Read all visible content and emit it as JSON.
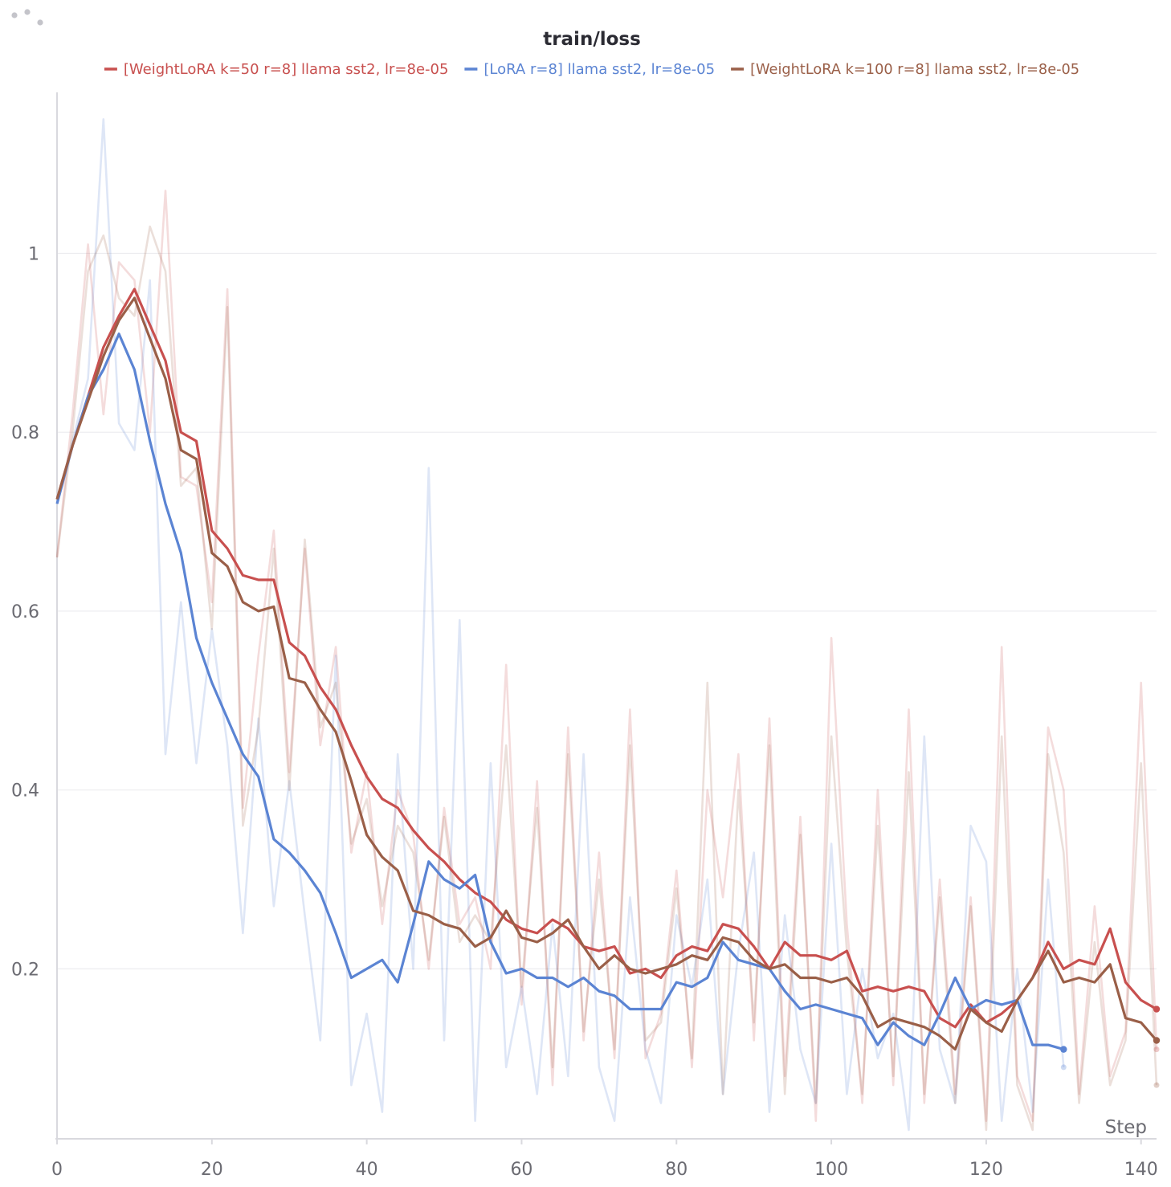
{
  "chart_data": {
    "type": "line",
    "title": "train/loss",
    "xlabel": "Step",
    "ylabel": "",
    "xlim": [
      0,
      142
    ],
    "ylim": [
      0.01,
      1.18
    ],
    "x_ticks": [
      0,
      20,
      40,
      60,
      80,
      100,
      120,
      140
    ],
    "y_ticks": [
      0.2,
      0.4,
      0.6,
      0.8,
      1
    ],
    "y_tick_labels": [
      "0.2",
      "0.4",
      "0.6",
      "0.8",
      "1"
    ],
    "grid": true,
    "legend_position": "top-center",
    "series": [
      {
        "name": "[WeightLoRA k=50 r=8] llama sst2, lr=8e-05",
        "color": "#c8504f",
        "x": [
          0,
          2,
          4,
          6,
          8,
          10,
          12,
          14,
          16,
          18,
          20,
          22,
          24,
          26,
          28,
          30,
          32,
          34,
          36,
          38,
          40,
          42,
          44,
          46,
          48,
          50,
          52,
          54,
          56,
          58,
          60,
          62,
          64,
          66,
          68,
          70,
          72,
          74,
          76,
          78,
          80,
          82,
          84,
          86,
          88,
          90,
          92,
          94,
          96,
          98,
          100,
          102,
          104,
          106,
          108,
          110,
          112,
          114,
          116,
          118,
          120,
          122,
          124,
          126,
          128,
          130,
          132,
          134,
          136,
          138,
          140,
          142
        ],
        "values": [
          0.725,
          0.785,
          0.84,
          0.895,
          0.93,
          0.96,
          0.92,
          0.88,
          0.8,
          0.79,
          0.69,
          0.67,
          0.64,
          0.635,
          0.635,
          0.565,
          0.55,
          0.515,
          0.49,
          0.45,
          0.415,
          0.39,
          0.38,
          0.355,
          0.335,
          0.32,
          0.3,
          0.285,
          0.275,
          0.255,
          0.245,
          0.24,
          0.255,
          0.245,
          0.225,
          0.22,
          0.225,
          0.195,
          0.2,
          0.19,
          0.215,
          0.225,
          0.22,
          0.25,
          0.245,
          0.225,
          0.2,
          0.23,
          0.215,
          0.215,
          0.21,
          0.22,
          0.175,
          0.18,
          0.175,
          0.18,
          0.175,
          0.145,
          0.135,
          0.16,
          0.14,
          0.15,
          0.165,
          0.19,
          0.23,
          0.2,
          0.21,
          0.205,
          0.245,
          0.185,
          0.165,
          0.155
        ]
      },
      {
        "name": "[LoRA r=8] llama sst2, lr=8e-05",
        "color": "#5b84d3",
        "x": [
          0,
          2,
          4,
          6,
          8,
          10,
          12,
          14,
          16,
          18,
          20,
          22,
          24,
          26,
          28,
          30,
          32,
          34,
          36,
          38,
          40,
          42,
          44,
          46,
          48,
          50,
          52,
          54,
          56,
          58,
          60,
          62,
          64,
          66,
          68,
          70,
          72,
          74,
          76,
          78,
          80,
          82,
          84,
          86,
          88,
          90,
          92,
          94,
          96,
          98,
          100,
          102,
          104,
          106,
          108,
          110,
          112,
          114,
          116,
          118,
          120,
          122,
          124,
          126,
          128,
          130
        ],
        "values": [
          0.72,
          0.785,
          0.84,
          0.87,
          0.91,
          0.87,
          0.79,
          0.72,
          0.665,
          0.57,
          0.52,
          0.48,
          0.44,
          0.415,
          0.345,
          0.33,
          0.31,
          0.285,
          0.24,
          0.19,
          0.2,
          0.21,
          0.185,
          0.25,
          0.32,
          0.3,
          0.29,
          0.305,
          0.23,
          0.195,
          0.2,
          0.19,
          0.19,
          0.18,
          0.19,
          0.175,
          0.17,
          0.155,
          0.155,
          0.155,
          0.185,
          0.18,
          0.19,
          0.23,
          0.21,
          0.205,
          0.2,
          0.175,
          0.155,
          0.16,
          0.155,
          0.15,
          0.145,
          0.115,
          0.14,
          0.125,
          0.115,
          0.15,
          0.19,
          0.155,
          0.165,
          0.16,
          0.165,
          0.115,
          0.115,
          0.11
        ]
      },
      {
        "name": "[WeightLoRA k=100 r=8] llama sst2, lr=8e-05",
        "color": "#9a5f48",
        "x": [
          0,
          2,
          4,
          6,
          8,
          10,
          12,
          14,
          16,
          18,
          20,
          22,
          24,
          26,
          28,
          30,
          32,
          34,
          36,
          38,
          40,
          42,
          44,
          46,
          48,
          50,
          52,
          54,
          56,
          58,
          60,
          62,
          64,
          66,
          68,
          70,
          72,
          74,
          76,
          78,
          80,
          82,
          84,
          86,
          88,
          90,
          92,
          94,
          96,
          98,
          100,
          102,
          104,
          106,
          108,
          110,
          112,
          114,
          116,
          118,
          120,
          122,
          124,
          126,
          128,
          130,
          132,
          134,
          136,
          138,
          140,
          142
        ],
        "values": [
          0.725,
          0.785,
          0.835,
          0.885,
          0.925,
          0.95,
          0.905,
          0.86,
          0.78,
          0.77,
          0.665,
          0.65,
          0.61,
          0.6,
          0.605,
          0.525,
          0.52,
          0.49,
          0.465,
          0.41,
          0.35,
          0.325,
          0.31,
          0.265,
          0.26,
          0.25,
          0.245,
          0.225,
          0.235,
          0.265,
          0.235,
          0.23,
          0.24,
          0.255,
          0.225,
          0.2,
          0.215,
          0.2,
          0.195,
          0.2,
          0.205,
          0.215,
          0.21,
          0.235,
          0.23,
          0.21,
          0.2,
          0.205,
          0.19,
          0.19,
          0.185,
          0.19,
          0.17,
          0.135,
          0.145,
          0.14,
          0.135,
          0.125,
          0.11,
          0.155,
          0.14,
          0.13,
          0.165,
          0.19,
          0.22,
          0.185,
          0.19,
          0.185,
          0.205,
          0.145,
          0.14,
          0.12
        ]
      }
    ],
    "raw_series": [
      {
        "of": "[WeightLoRA k=50 r=8] llama sst2, lr=8e-05",
        "x": [
          0,
          2,
          4,
          6,
          8,
          10,
          12,
          14,
          16,
          18,
          20,
          22,
          24,
          26,
          28,
          30,
          32,
          34,
          36,
          38,
          40,
          42,
          44,
          46,
          48,
          50,
          52,
          54,
          56,
          58,
          60,
          62,
          64,
          66,
          68,
          70,
          72,
          74,
          76,
          78,
          80,
          82,
          84,
          86,
          88,
          90,
          92,
          94,
          96,
          98,
          100,
          102,
          104,
          106,
          108,
          110,
          112,
          114,
          116,
          118,
          120,
          122,
          124,
          126,
          128,
          130,
          132,
          134,
          136,
          138,
          140,
          142
        ],
        "values": [
          0.66,
          0.82,
          1.01,
          0.82,
          0.99,
          0.97,
          0.8,
          1.07,
          0.75,
          0.74,
          0.61,
          0.96,
          0.38,
          0.55,
          0.69,
          0.42,
          0.67,
          0.45,
          0.56,
          0.33,
          0.42,
          0.25,
          0.4,
          0.35,
          0.2,
          0.38,
          0.25,
          0.28,
          0.2,
          0.54,
          0.16,
          0.41,
          0.07,
          0.47,
          0.12,
          0.33,
          0.1,
          0.49,
          0.1,
          0.15,
          0.31,
          0.09,
          0.4,
          0.28,
          0.44,
          0.12,
          0.48,
          0.08,
          0.37,
          0.03,
          0.57,
          0.25,
          0.05,
          0.4,
          0.07,
          0.49,
          0.05,
          0.3,
          0.06,
          0.28,
          0.03,
          0.56,
          0.08,
          0.03,
          0.47,
          0.4,
          0.06,
          0.27,
          0.08,
          0.13,
          0.52,
          0.11
        ]
      },
      {
        "of": "[LoRA r=8] llama sst2, lr=8e-05",
        "x": [
          0,
          2,
          4,
          6,
          8,
          10,
          12,
          14,
          16,
          18,
          20,
          22,
          24,
          26,
          28,
          30,
          32,
          34,
          36,
          38,
          40,
          42,
          44,
          46,
          48,
          50,
          52,
          54,
          56,
          58,
          60,
          62,
          64,
          66,
          68,
          70,
          72,
          74,
          76,
          78,
          80,
          82,
          84,
          86,
          88,
          90,
          92,
          94,
          96,
          98,
          100,
          102,
          104,
          106,
          108,
          110,
          112,
          114,
          116,
          118,
          120,
          122,
          124,
          126,
          128,
          130
        ],
        "values": [
          0.72,
          0.79,
          0.86,
          1.15,
          0.81,
          0.78,
          0.97,
          0.44,
          0.61,
          0.43,
          0.58,
          0.45,
          0.24,
          0.48,
          0.27,
          0.41,
          0.26,
          0.12,
          0.55,
          0.07,
          0.15,
          0.04,
          0.44,
          0.2,
          0.76,
          0.12,
          0.59,
          0.03,
          0.43,
          0.09,
          0.18,
          0.06,
          0.25,
          0.08,
          0.44,
          0.09,
          0.03,
          0.28,
          0.11,
          0.05,
          0.26,
          0.18,
          0.3,
          0.06,
          0.22,
          0.33,
          0.04,
          0.26,
          0.11,
          0.05,
          0.34,
          0.06,
          0.2,
          0.1,
          0.15,
          0.02,
          0.46,
          0.11,
          0.05,
          0.36,
          0.32,
          0.03,
          0.2,
          0.04,
          0.3,
          0.09
        ]
      },
      {
        "of": "[WeightLoRA k=100 r=8] llama sst2, lr=8e-05",
        "x": [
          0,
          2,
          4,
          6,
          8,
          10,
          12,
          14,
          16,
          18,
          20,
          22,
          24,
          26,
          28,
          30,
          32,
          34,
          36,
          38,
          40,
          42,
          44,
          46,
          48,
          50,
          52,
          54,
          56,
          58,
          60,
          62,
          64,
          66,
          68,
          70,
          72,
          74,
          76,
          78,
          80,
          82,
          84,
          86,
          88,
          90,
          92,
          94,
          96,
          98,
          100,
          102,
          104,
          106,
          108,
          110,
          112,
          114,
          116,
          118,
          120,
          122,
          124,
          126,
          128,
          130,
          132,
          134,
          136,
          138,
          140,
          142
        ],
        "values": [
          0.66,
          0.8,
          0.98,
          1.02,
          0.95,
          0.93,
          1.03,
          0.98,
          0.74,
          0.76,
          0.58,
          0.94,
          0.36,
          0.47,
          0.67,
          0.4,
          0.68,
          0.47,
          0.52,
          0.34,
          0.39,
          0.27,
          0.36,
          0.33,
          0.21,
          0.37,
          0.23,
          0.26,
          0.23,
          0.45,
          0.18,
          0.38,
          0.09,
          0.44,
          0.13,
          0.3,
          0.11,
          0.45,
          0.12,
          0.14,
          0.29,
          0.1,
          0.52,
          0.06,
          0.4,
          0.14,
          0.45,
          0.06,
          0.35,
          0.05,
          0.46,
          0.22,
          0.06,
          0.36,
          0.08,
          0.42,
          0.06,
          0.28,
          0.05,
          0.27,
          0.02,
          0.46,
          0.07,
          0.02,
          0.44,
          0.33,
          0.05,
          0.23,
          0.07,
          0.12,
          0.43,
          0.07
        ]
      }
    ]
  },
  "colors": {
    "grid": "#ececef",
    "axis": "#d9d9de",
    "tick_text": "#6b6b72",
    "title_text": "#2b2b33",
    "menu_dots": "#bdbdc3"
  },
  "icons": {
    "menu": "ellipsis-icon"
  }
}
